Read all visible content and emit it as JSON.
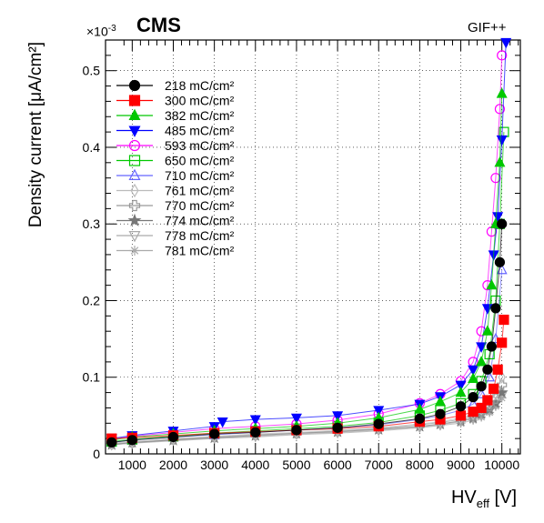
{
  "chart_data": {
    "type": "scatter",
    "experiment_label": "CMS",
    "facility_label": "GIF++",
    "exponent_label": "×10",
    "exponent_power": "-3",
    "xlabel": {
      "main": "HV",
      "sub": "eff",
      "unit": " [V]"
    },
    "ylabel": "Density current [μA/cm²]",
    "xlim": [
      350,
      10450
    ],
    "ylim": [
      0,
      0.54
    ],
    "x_ticks": [
      1000,
      2000,
      3000,
      4000,
      5000,
      6000,
      7000,
      8000,
      9000,
      10000
    ],
    "y_ticks": [
      0,
      0.1,
      0.2,
      0.3,
      0.4,
      0.5
    ],
    "y_tick_labels": [
      "0",
      "0.1",
      "0.2",
      "0.3",
      "0.4",
      "0.5"
    ],
    "grid": true,
    "legend_position": "top-left",
    "series": [
      {
        "name": "218 mC/cm²",
        "color": "#000000",
        "marker": "circle-filled",
        "x": [
          500,
          1000,
          2000,
          3000,
          4000,
          5000,
          6000,
          7000,
          8000,
          8500,
          9000,
          9300,
          9500,
          9650,
          9750,
          9850,
          9950,
          10000
        ],
        "y": [
          0.015,
          0.018,
          0.022,
          0.026,
          0.028,
          0.031,
          0.034,
          0.039,
          0.046,
          0.052,
          0.062,
          0.074,
          0.088,
          0.11,
          0.14,
          0.19,
          0.25,
          0.3
        ]
      },
      {
        "name": "300 mC/cm²",
        "color": "#ff0000",
        "marker": "square-filled",
        "x": [
          500,
          1000,
          2000,
          3000,
          4000,
          5000,
          6000,
          7000,
          8000,
          8500,
          9000,
          9300,
          9500,
          9650,
          9800,
          9900,
          10000,
          10050
        ],
        "y": [
          0.02,
          0.021,
          0.024,
          0.027,
          0.029,
          0.031,
          0.033,
          0.036,
          0.042,
          0.045,
          0.05,
          0.055,
          0.06,
          0.07,
          0.085,
          0.11,
          0.145,
          0.175
        ]
      },
      {
        "name": "382 mC/cm²",
        "color": "#00c800",
        "marker": "triangle-up-filled",
        "x": [
          500,
          1000,
          2000,
          3000,
          4000,
          5000,
          6000,
          7000,
          8000,
          8500,
          9000,
          9300,
          9500,
          9650,
          9750,
          9850,
          9950,
          10000
        ],
        "y": [
          0.018,
          0.022,
          0.026,
          0.03,
          0.033,
          0.036,
          0.04,
          0.047,
          0.058,
          0.068,
          0.08,
          0.098,
          0.12,
          0.16,
          0.22,
          0.3,
          0.38,
          0.47
        ]
      },
      {
        "name": "485 mC/cm²",
        "color": "#0000ff",
        "marker": "triangle-down-filled",
        "x": [
          500,
          1000,
          2000,
          3000,
          3200,
          4000,
          5000,
          6000,
          7000,
          8000,
          8500,
          9000,
          9300,
          9500,
          9650,
          9800,
          9900,
          10000,
          10100
        ],
        "y": [
          0.02,
          0.024,
          0.03,
          0.036,
          0.042,
          0.045,
          0.047,
          0.05,
          0.057,
          0.065,
          0.075,
          0.09,
          0.11,
          0.14,
          0.19,
          0.26,
          0.31,
          0.41,
          0.537
        ]
      },
      {
        "name": "593 mC/cm²",
        "color": "#ff00ff",
        "marker": "circle-open",
        "x": [
          500,
          1000,
          2000,
          3000,
          4000,
          5000,
          6000,
          7000,
          8000,
          8500,
          9000,
          9300,
          9500,
          9650,
          9750,
          9850,
          9950,
          10000
        ],
        "y": [
          0.019,
          0.023,
          0.028,
          0.033,
          0.036,
          0.039,
          0.044,
          0.052,
          0.066,
          0.078,
          0.095,
          0.12,
          0.16,
          0.22,
          0.29,
          0.36,
          0.45,
          0.52
        ]
      },
      {
        "name": "650 mC/cm²",
        "color": "#00c800",
        "marker": "square-open",
        "x": [
          500,
          1000,
          2000,
          3000,
          4000,
          5000,
          6000,
          7000,
          8000,
          8500,
          9000,
          9300,
          9500,
          9700,
          9850,
          9950,
          10050
        ],
        "y": [
          0.016,
          0.019,
          0.023,
          0.027,
          0.03,
          0.033,
          0.036,
          0.041,
          0.05,
          0.057,
          0.066,
          0.078,
          0.095,
          0.13,
          0.2,
          0.3,
          0.42
        ]
      },
      {
        "name": "710 mC/cm²",
        "color": "#6666ff",
        "marker": "triangle-up-open",
        "x": [
          500,
          1000,
          2000,
          3000,
          4000,
          5000,
          6000,
          7000,
          8000,
          8500,
          9000,
          9300,
          9500,
          9700,
          9850,
          10000
        ],
        "y": [
          0.015,
          0.018,
          0.022,
          0.025,
          0.028,
          0.031,
          0.034,
          0.038,
          0.045,
          0.05,
          0.057,
          0.065,
          0.078,
          0.1,
          0.15,
          0.24
        ]
      },
      {
        "name": "761 mC/cm²",
        "color": "#bbbbbb",
        "marker": "diamond-open",
        "x": [
          500,
          1000,
          2000,
          3000,
          4000,
          5000,
          6000,
          7000,
          8000,
          8500,
          9000,
          9300,
          9500,
          9700,
          9850,
          10000
        ],
        "y": [
          0.014,
          0.016,
          0.02,
          0.023,
          0.026,
          0.028,
          0.031,
          0.034,
          0.039,
          0.042,
          0.047,
          0.052,
          0.058,
          0.066,
          0.078,
          0.1
        ]
      },
      {
        "name": "770 mC/cm²",
        "color": "#999999",
        "marker": "cross-open",
        "x": [
          500,
          1000,
          2000,
          3000,
          4000,
          5000,
          6000,
          7000,
          8000,
          8500,
          9000,
          9300,
          9500,
          9700,
          9850,
          10000
        ],
        "y": [
          0.013,
          0.015,
          0.019,
          0.022,
          0.025,
          0.027,
          0.03,
          0.033,
          0.038,
          0.041,
          0.045,
          0.05,
          0.055,
          0.062,
          0.072,
          0.09
        ]
      },
      {
        "name": "774 mC/cm²",
        "color": "#777777",
        "marker": "star-filled",
        "x": [
          500,
          1000,
          2000,
          3000,
          4000,
          5000,
          6000,
          7000,
          8000,
          8500,
          9000,
          9300,
          9500,
          9700,
          9850,
          10000
        ],
        "y": [
          0.012,
          0.015,
          0.018,
          0.021,
          0.024,
          0.027,
          0.029,
          0.032,
          0.036,
          0.039,
          0.043,
          0.047,
          0.052,
          0.058,
          0.066,
          0.08
        ]
      },
      {
        "name": "778 mC/cm²",
        "color": "#aaaaaa",
        "marker": "triangle-down-open",
        "x": [
          500,
          1000,
          2000,
          3000,
          4000,
          5000,
          6000,
          7000,
          8000,
          8500,
          9000,
          9300,
          9500,
          9700,
          9850,
          10000
        ],
        "y": [
          0.012,
          0.014,
          0.018,
          0.021,
          0.023,
          0.026,
          0.028,
          0.031,
          0.035,
          0.038,
          0.042,
          0.046,
          0.05,
          0.056,
          0.064,
          0.076
        ]
      },
      {
        "name": "781 mC/cm²",
        "color": "#aaaaaa",
        "marker": "asterisk",
        "x": [
          500,
          1000,
          2000,
          3000,
          4000,
          5000,
          6000,
          7000,
          8000,
          8500,
          9000,
          9300,
          9500,
          9700,
          9850,
          10000
        ],
        "y": [
          0.012,
          0.014,
          0.017,
          0.02,
          0.022,
          0.025,
          0.027,
          0.03,
          0.034,
          0.037,
          0.04,
          0.044,
          0.048,
          0.054,
          0.062,
          0.073
        ]
      }
    ]
  }
}
